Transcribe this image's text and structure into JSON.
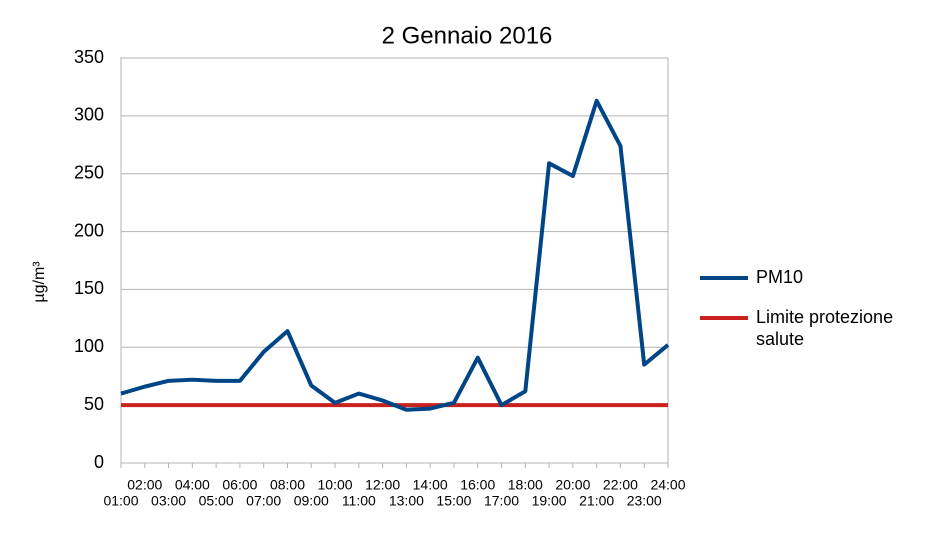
{
  "chart_data": {
    "type": "line",
    "title": "2 Gennaio 2016",
    "y_label": "µg/m³",
    "categories": [
      "01:00",
      "02:00",
      "03:00",
      "04:00",
      "05:00",
      "06:00",
      "07:00",
      "08:00",
      "09:00",
      "10:00",
      "11:00",
      "12:00",
      "13:00",
      "14:00",
      "15:00",
      "16:00",
      "17:00",
      "18:00",
      "19:00",
      "20:00",
      "21:00",
      "22:00",
      "23:00",
      "24:00"
    ],
    "series": [
      {
        "name": "PM10",
        "color": "#004586",
        "values": [
          60,
          66,
          71,
          72,
          71,
          71,
          96,
          114,
          67,
          52,
          60,
          54,
          46,
          47,
          52,
          91,
          50,
          62,
          259,
          248,
          313,
          274,
          85,
          102
        ]
      },
      {
        "name": "Limite protezione salute",
        "color": "#c9211e",
        "values": [
          50,
          50,
          50,
          50,
          50,
          50,
          50,
          50,
          50,
          50,
          50,
          50,
          50,
          50,
          50,
          50,
          50,
          50,
          50,
          50,
          50,
          50,
          50,
          50
        ]
      }
    ],
    "ylim": [
      0,
      350
    ],
    "yticks": [
      0,
      50,
      100,
      150,
      200,
      250,
      300,
      350
    ],
    "grid": true,
    "legend": "right"
  }
}
